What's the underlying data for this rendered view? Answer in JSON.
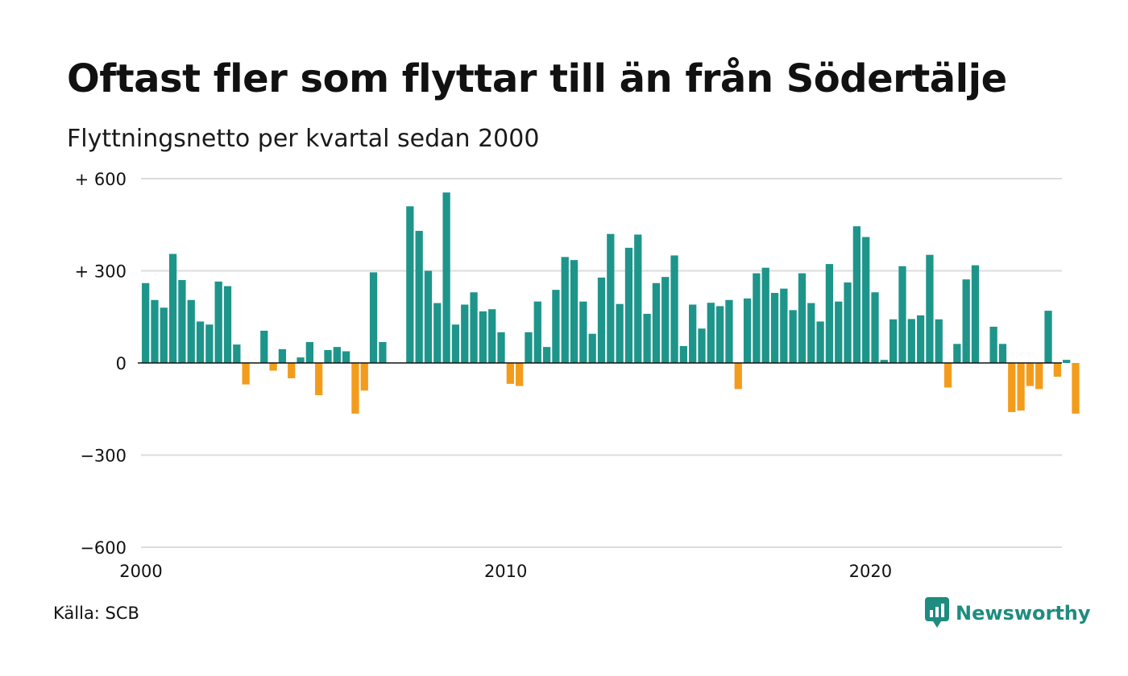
{
  "title": "Oftast fler som flyttar till än från Södertälje",
  "subtitle": "Flyttningsnetto per kvartal sedan 2000",
  "source": "Källa: SCB",
  "brand": {
    "name": "Newsworthy",
    "icon": "newsworthy-logo-icon",
    "color": "#1e8c7f"
  },
  "colors": {
    "positive": "#1e958a",
    "negative": "#f39c1c",
    "grid": "#dcdcdc",
    "axis": "#111111"
  },
  "chart_data": {
    "type": "bar",
    "title": "Oftast fler som flyttar till än från Södertälje",
    "subtitle": "Flyttningsnetto per kvartal sedan 2000",
    "xlabel": "",
    "ylabel": "",
    "ylim": [
      -600,
      600
    ],
    "yticks": [
      600,
      300,
      0,
      -300,
      -600
    ],
    "ytick_labels": [
      "+ 600",
      "+ 300",
      "0",
      "−300",
      "−600"
    ],
    "xticks": [
      2000,
      2010,
      2020
    ],
    "xtick_labels": [
      "2000",
      "2010",
      "2020"
    ],
    "x_range": [
      2000,
      2025.25
    ],
    "grid": true,
    "legend": "none",
    "start_year": 2000,
    "periods_per_year": 4,
    "values": [
      260,
      205,
      180,
      355,
      270,
      205,
      135,
      125,
      265,
      250,
      60,
      -70,
      0,
      105,
      -25,
      45,
      -50,
      18,
      68,
      -105,
      42,
      52,
      38,
      -165,
      -90,
      295,
      68,
      0,
      0,
      510,
      430,
      300,
      195,
      555,
      125,
      190,
      230,
      168,
      175,
      100,
      -68,
      -75,
      100,
      200,
      52,
      238,
      345,
      335,
      200,
      95,
      278,
      420,
      192,
      375,
      418,
      160,
      260,
      280,
      350,
      55,
      190,
      112,
      196,
      185,
      205,
      -85,
      210,
      292,
      310,
      228,
      242,
      172,
      292,
      195,
      135,
      322,
      200,
      262,
      445,
      410,
      230,
      10,
      142,
      315,
      143,
      155,
      352,
      142,
      -80,
      62,
      272,
      318,
      0,
      118,
      62,
      -160,
      -155,
      -75,
      -85,
      170,
      -45,
      10,
      -165
    ]
  }
}
